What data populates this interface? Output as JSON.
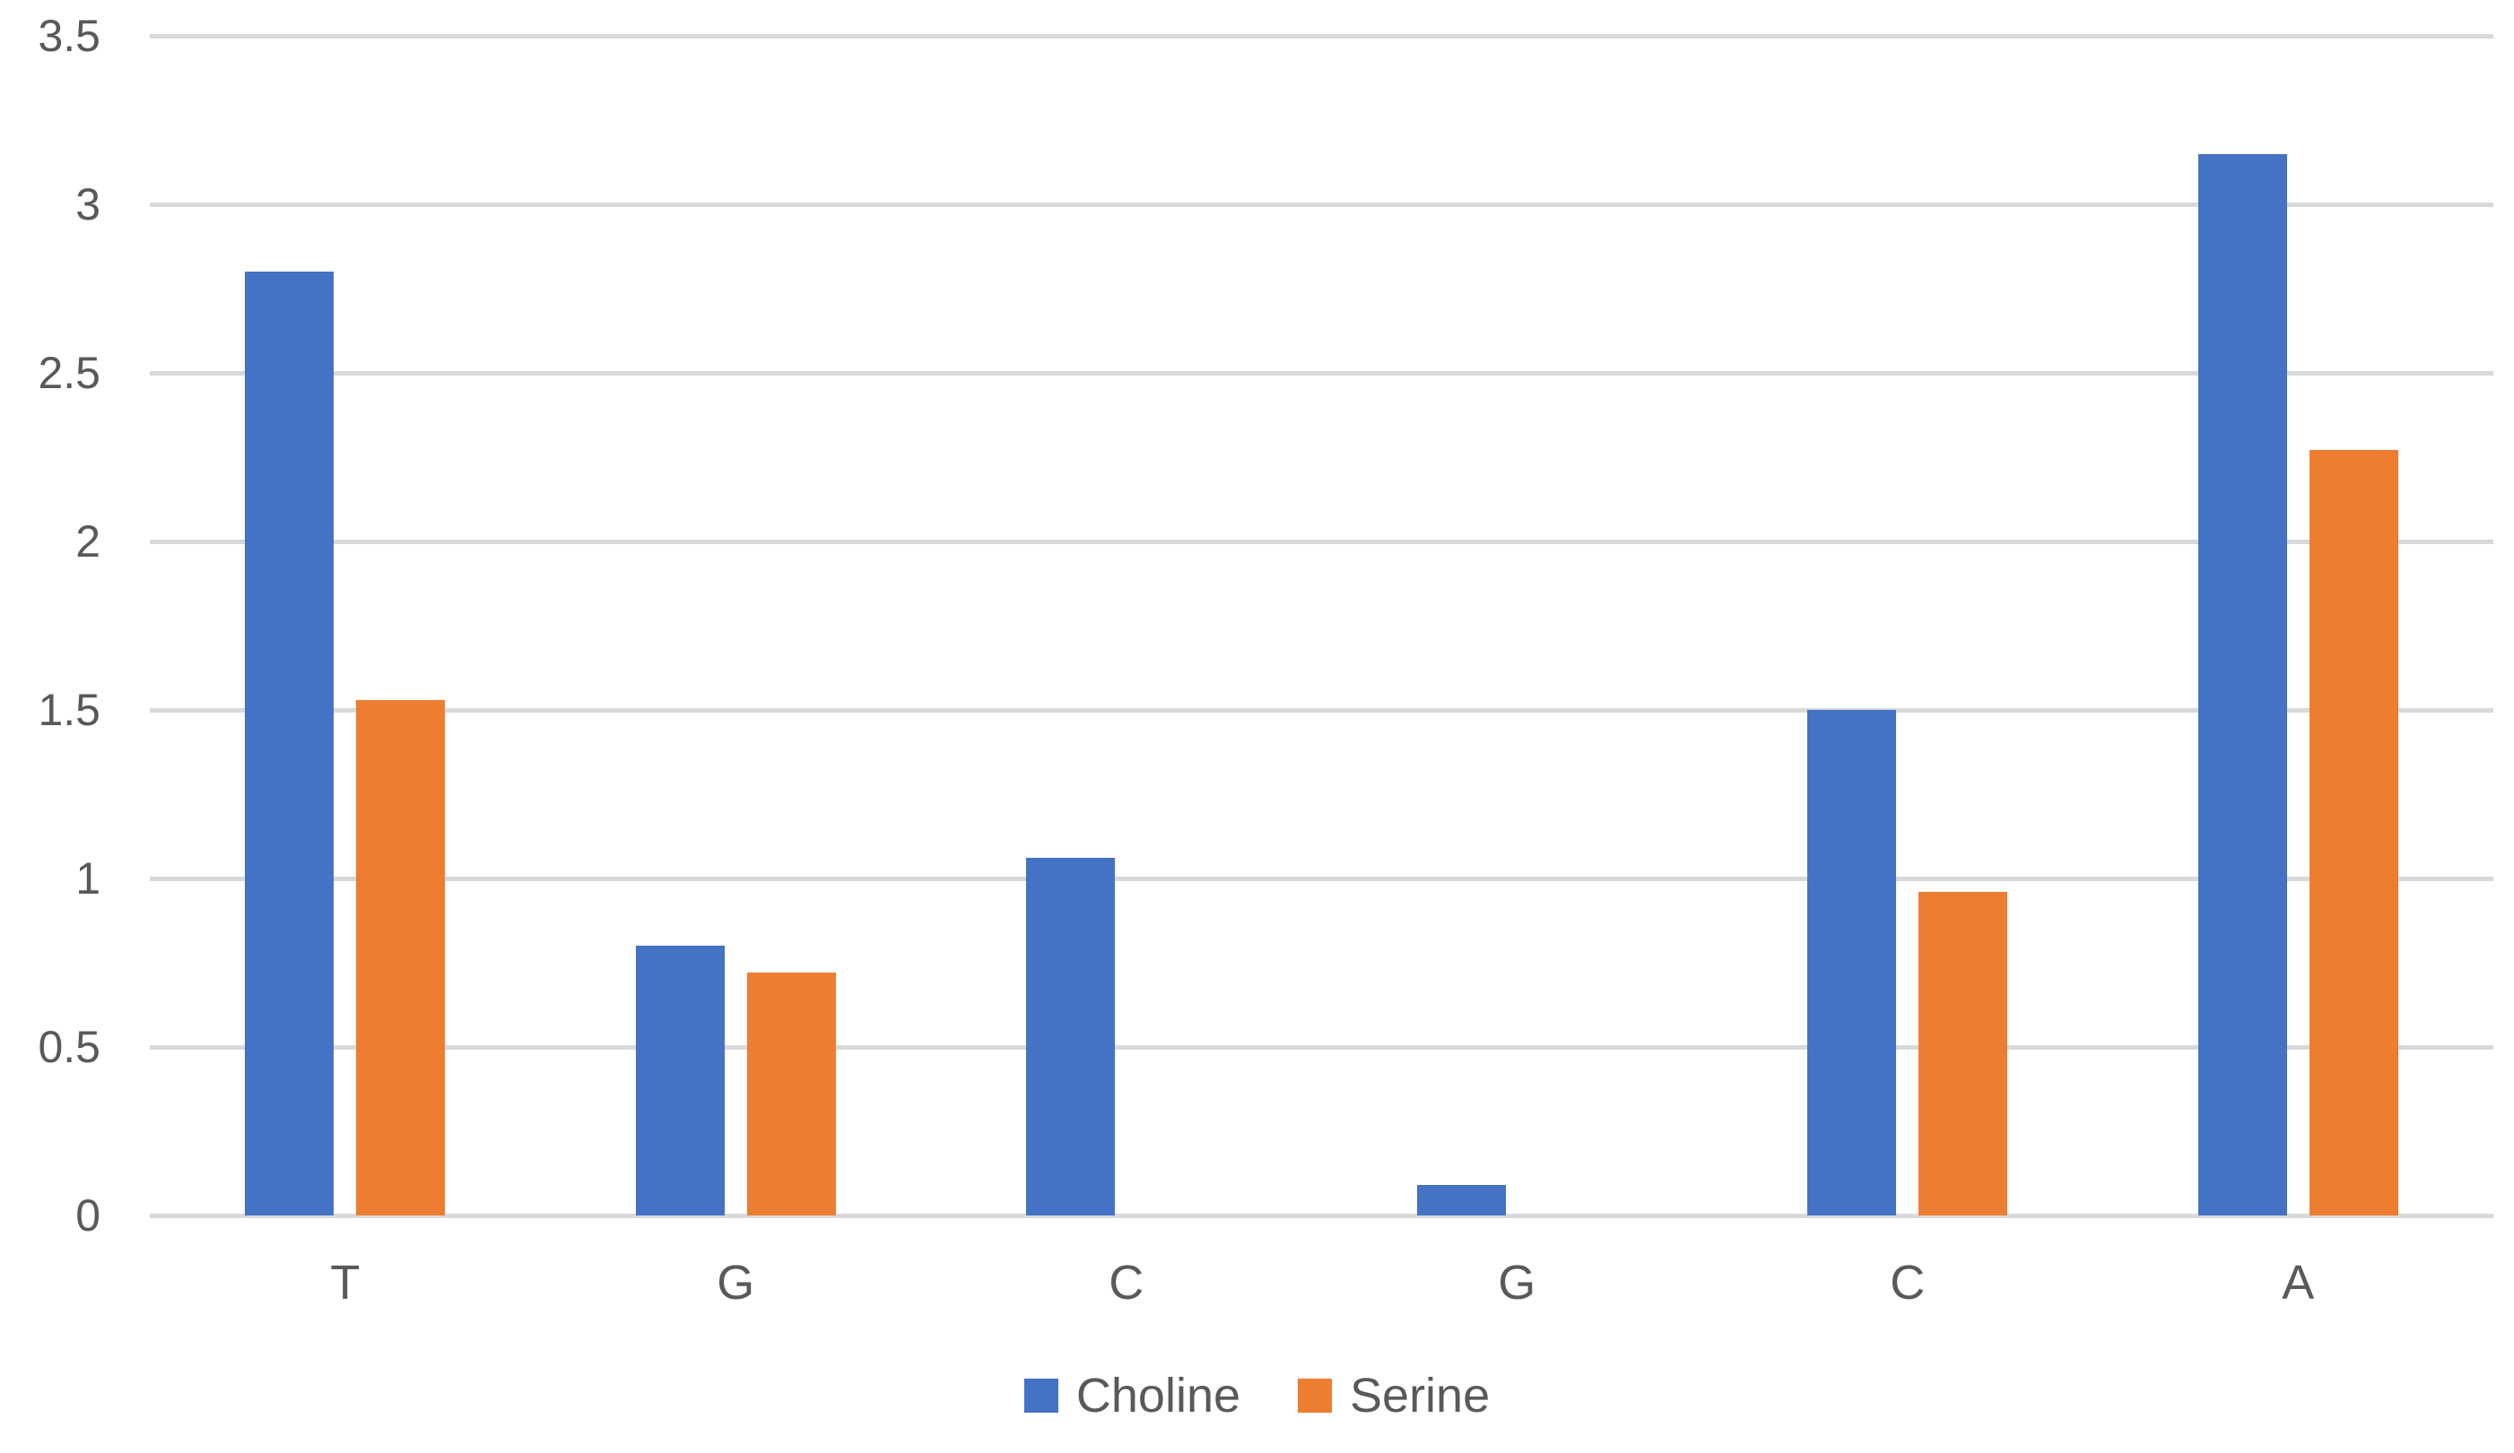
{
  "chart_data": {
    "type": "bar",
    "title": "",
    "xlabel": "",
    "ylabel": "",
    "categories": [
      "T",
      "G",
      "C",
      "G",
      "C",
      "A"
    ],
    "series": [
      {
        "name": "Choline",
        "color": "#4472C4",
        "values": [
          2.8,
          0.8,
          1.06,
          0.09,
          1.5,
          3.15
        ]
      },
      {
        "name": "Serine",
        "color": "#ED7D31",
        "values": [
          1.53,
          0.72,
          0,
          0,
          0.96,
          2.27
        ]
      }
    ],
    "ylim": [
      0,
      3.5
    ],
    "ytick_step": 0.5,
    "ytick_labels": [
      "0",
      "0.5",
      "1",
      "1.5",
      "2",
      "2.5",
      "3",
      "3.5"
    ],
    "grid": "horizontal-only",
    "gridline_color": "#D9D9D9",
    "axis_text_color": "#595959",
    "background_color": "#FFFFFF",
    "legend_position": "bottom-center"
  },
  "legend": {
    "items": [
      {
        "label": "Choline",
        "color": "#4472C4"
      },
      {
        "label": "Serine",
        "color": "#ED7D31"
      }
    ]
  }
}
